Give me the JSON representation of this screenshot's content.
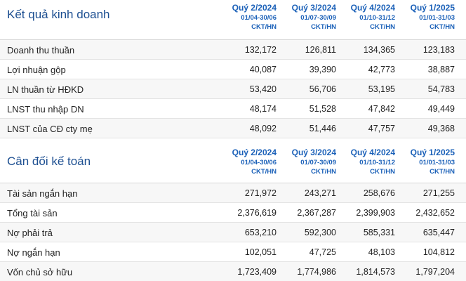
{
  "income": {
    "title": "Kết quả kinh doanh",
    "quarters": [
      {
        "name": "Quý 2/2024",
        "range": "01/04-30/06",
        "exchange": "CKT/HN"
      },
      {
        "name": "Quý 3/2024",
        "range": "01/07-30/09",
        "exchange": "CKT/HN"
      },
      {
        "name": "Quý 4/2024",
        "range": "01/10-31/12",
        "exchange": "CKT/HN"
      },
      {
        "name": "Quý 1/2025",
        "range": "01/01-31/03",
        "exchange": "CKT/HN"
      }
    ],
    "rows": [
      {
        "label": "Doanh thu thuần",
        "values": [
          "132,172",
          "126,811",
          "134,365",
          "123,183"
        ]
      },
      {
        "label": "Lợi nhuận gộp",
        "values": [
          "40,087",
          "39,390",
          "42,773",
          "38,887"
        ]
      },
      {
        "label": "LN thuần từ HĐKD",
        "values": [
          "53,420",
          "56,706",
          "53,195",
          "54,783"
        ]
      },
      {
        "label": "LNST thu nhập DN",
        "values": [
          "48,174",
          "51,528",
          "47,842",
          "49,449"
        ]
      },
      {
        "label": "LNST của CĐ cty mẹ",
        "values": [
          "48,092",
          "51,446",
          "47,757",
          "49,368"
        ]
      }
    ]
  },
  "balance": {
    "title": "Cân đối kế toán",
    "quarters": [
      {
        "name": "Quý 2/2024",
        "range": "01/04-30/06",
        "exchange": "CKT/HN"
      },
      {
        "name": "Quý 3/2024",
        "range": "01/07-30/09",
        "exchange": "CKT/HN"
      },
      {
        "name": "Quý 4/2024",
        "range": "01/10-31/12",
        "exchange": "CKT/HN"
      },
      {
        "name": "Quý 1/2025",
        "range": "01/01-31/03",
        "exchange": "CKT/HN"
      }
    ],
    "rows": [
      {
        "label": "Tài sản ngắn hạn",
        "values": [
          "271,972",
          "243,271",
          "258,676",
          "271,255"
        ]
      },
      {
        "label": "Tổng tài sản",
        "values": [
          "2,376,619",
          "2,367,287",
          "2,399,903",
          "2,432,652"
        ]
      },
      {
        "label": "Nợ phải trả",
        "values": [
          "653,210",
          "592,300",
          "585,331",
          "635,447"
        ]
      },
      {
        "label": "Nợ ngắn hạn",
        "values": [
          "102,051",
          "47,725",
          "48,103",
          "104,812"
        ]
      },
      {
        "label": "Vốn chủ sở hữu",
        "values": [
          "1,723,409",
          "1,774,986",
          "1,814,573",
          "1,797,204"
        ]
      }
    ]
  }
}
